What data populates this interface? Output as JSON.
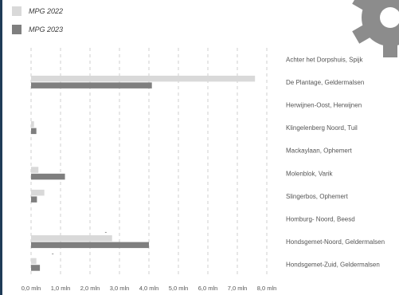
{
  "chart_data": {
    "type": "bar",
    "orientation": "horizontal",
    "categories": [
      "Achter het Dorpshuis, Spijk",
      "De Plantage, Geldermalsen",
      "Herwijnen-Oost, Herwijnen",
      "Klingelenberg Noord, Tuil",
      "Mackaylaan, Ophemert",
      "Molenblok, Varik",
      "Slingerbos, Ophemert",
      "Homburg- Noord, Beesd",
      "Hondsgemet-Noord, Geldermalsen",
      "Hondsgemet-Zuid, Geldermalsen"
    ],
    "series": [
      {
        "name": "MPG 2022",
        "color": "#d9d9d9",
        "values": [
          0.0,
          7.6,
          0.0,
          0.1,
          0.0,
          0.25,
          0.45,
          0.0,
          2.75,
          0.18
        ]
      },
      {
        "name": "MPG 2023",
        "color": "#7f7f7f",
        "values": [
          0.0,
          4.1,
          0.0,
          0.18,
          0.0,
          1.15,
          0.2,
          0.0,
          4.0,
          0.3
        ]
      }
    ],
    "xlim": [
      0,
      8
    ],
    "xticks": [
      0,
      1,
      2,
      3,
      4,
      5,
      6,
      7,
      8
    ],
    "xtick_labels": [
      "0,0 mln",
      "1,0 mln",
      "2,0 mln",
      "3,0 mln",
      "4,0 mln",
      "5,0 mln",
      "6,0 mln",
      "7,0 mln",
      "8,0 mln"
    ],
    "grid": "vertical dashed",
    "legend_position": "top-left",
    "annotations": [
      "-",
      "-"
    ]
  },
  "decor": {
    "left_bar_color": "#1f3b57",
    "gear_color": "#8c8c8c",
    "icon": "gear-icon"
  }
}
